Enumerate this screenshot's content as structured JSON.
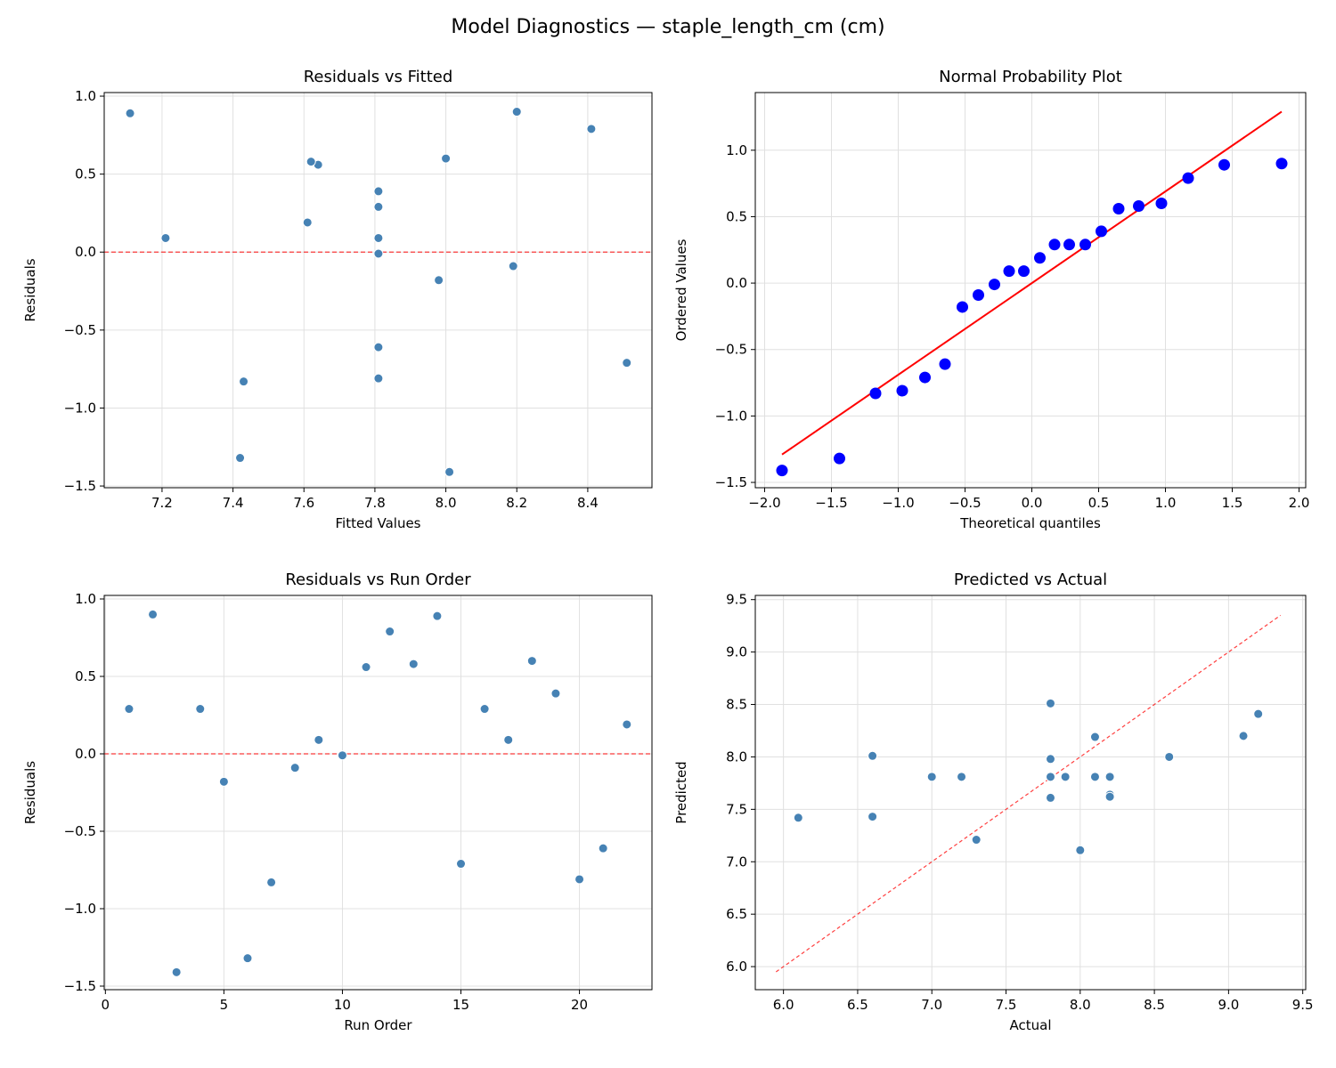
{
  "figure_title": "Model Diagnostics — staple_length_cm (cm)",
  "colors": {
    "point": "#4682b4",
    "qq_point": "#0000ff",
    "qq_line": "#ff0000",
    "ref_line": "#ff0000",
    "grid": "#e0e0e0"
  },
  "chart_data": [
    {
      "type": "scatter",
      "title": "Residuals vs Fitted",
      "xlabel": "Fitted Values",
      "ylabel": "Residuals",
      "xlim": [
        7.037,
        8.581
      ],
      "ylim": [
        -1.511,
        1.023
      ],
      "xticks": [
        7.2,
        7.4,
        7.6,
        7.8,
        8.0,
        8.2,
        8.4
      ],
      "yticks": [
        -1.5,
        -1.0,
        -0.5,
        0.0,
        0.5,
        1.0
      ],
      "grid": true,
      "hline": 0,
      "x": [
        7.81,
        8.2,
        8.01,
        7.81,
        7.98,
        7.42,
        7.43,
        8.19,
        7.81,
        7.81,
        7.64,
        8.41,
        7.62,
        7.11,
        8.51,
        7.81,
        7.21,
        8.0,
        7.81,
        7.81,
        7.81,
        7.61
      ],
      "y": [
        0.29,
        0.9,
        -1.41,
        0.29,
        -0.18,
        -1.32,
        -0.83,
        -0.09,
        0.09,
        -0.01,
        0.56,
        0.79,
        0.58,
        0.89,
        -0.71,
        0.29,
        0.09,
        0.6,
        0.39,
        -0.81,
        -0.61,
        0.19
      ]
    },
    {
      "type": "scatter",
      "title": "Normal Probability Plot",
      "xlabel": "Theoretical quantiles",
      "ylabel": "Ordered Values",
      "xlim": [
        -2.07,
        2.05
      ],
      "ylim": [
        -1.54,
        1.434
      ],
      "xticks": [
        -2.0,
        -1.5,
        -1.0,
        -0.5,
        0.0,
        0.5,
        1.0,
        1.5,
        2.0
      ],
      "yticks": [
        -1.5,
        -1.0,
        -0.5,
        0.0,
        0.5,
        1.0
      ],
      "grid": true,
      "x": [
        -1.87,
        -1.44,
        -1.17,
        -0.97,
        -0.8,
        -0.65,
        -0.52,
        -0.4,
        -0.28,
        -0.17,
        -0.06,
        0.06,
        0.17,
        0.28,
        0.4,
        0.52,
        0.65,
        0.8,
        0.97,
        1.17,
        1.44,
        1.87
      ],
      "y": [
        -1.41,
        -1.32,
        -0.83,
        -0.81,
        -0.71,
        -0.61,
        -0.18,
        -0.09,
        -0.01,
        0.09,
        0.09,
        0.19,
        0.29,
        0.29,
        0.29,
        0.39,
        0.56,
        0.58,
        0.6,
        0.79,
        0.89,
        0.9
      ],
      "fit_line": {
        "slope": 0.69,
        "intercept": 0.0,
        "x_range": [
          -1.87,
          1.87
        ]
      }
    },
    {
      "type": "scatter",
      "title": "Residuals vs Run Order",
      "xlabel": "Run Order",
      "ylabel": "Residuals",
      "xlim": [
        -0.05,
        23.06
      ],
      "ylim": [
        -1.523,
        1.023
      ],
      "xticks": [
        0,
        5,
        10,
        15,
        20
      ],
      "yticks": [
        -1.5,
        -1.0,
        -0.5,
        0.0,
        0.5,
        1.0
      ],
      "grid": true,
      "hline": 0,
      "x": [
        1,
        2,
        3,
        4,
        5,
        6,
        7,
        8,
        9,
        10,
        11,
        12,
        13,
        14,
        15,
        16,
        17,
        18,
        19,
        20,
        21,
        22
      ],
      "y": [
        0.29,
        0.9,
        -1.41,
        0.29,
        -0.18,
        -1.32,
        -0.83,
        -0.09,
        0.09,
        -0.01,
        0.56,
        0.79,
        0.58,
        0.89,
        -0.71,
        0.29,
        0.09,
        0.6,
        0.39,
        -0.81,
        -0.61,
        0.19
      ]
    },
    {
      "type": "scatter",
      "title": "Predicted vs Actual",
      "xlabel": "Actual",
      "ylabel": "Predicted",
      "xlim": [
        5.81,
        9.52
      ],
      "ylim": [
        5.78,
        9.54
      ],
      "xticks": [
        6.0,
        6.5,
        7.0,
        7.5,
        8.0,
        8.5,
        9.0,
        9.5
      ],
      "yticks": [
        6.0,
        6.5,
        7.0,
        7.5,
        8.0,
        8.5,
        9.0,
        9.5
      ],
      "grid": true,
      "diagonal": [
        5.95,
        9.35
      ],
      "x": [
        8.1,
        9.1,
        6.6,
        8.1,
        7.8,
        6.1,
        6.6,
        8.1,
        7.9,
        7.8,
        8.2,
        9.2,
        8.2,
        8.0,
        7.8,
        8.1,
        7.3,
        8.6,
        8.2,
        7.0,
        7.2,
        7.8
      ],
      "y": [
        7.81,
        8.2,
        8.01,
        7.81,
        7.98,
        7.42,
        7.43,
        8.19,
        7.81,
        7.81,
        7.64,
        8.41,
        7.62,
        7.11,
        8.51,
        7.81,
        7.21,
        8.0,
        7.81,
        7.81,
        7.81,
        7.61
      ]
    }
  ]
}
